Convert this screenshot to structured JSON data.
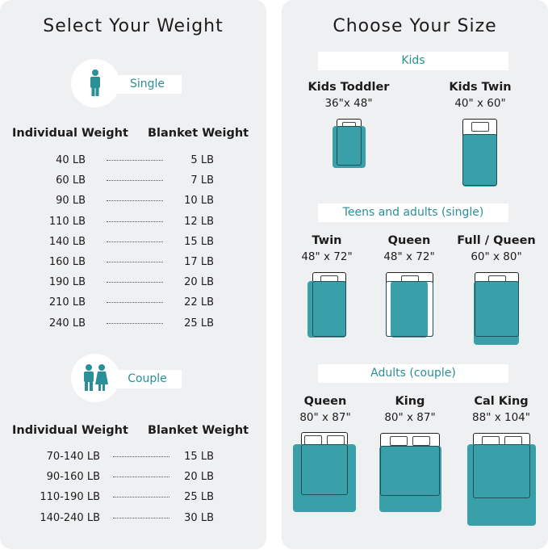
{
  "weight": {
    "title": "Select Your Weight",
    "single": {
      "label": "Single",
      "icon": "person-icon",
      "col1": "Individual Weight",
      "col2": "Blanket Weight",
      "rows": [
        [
          "40 LB",
          "5 LB"
        ],
        [
          "60 LB",
          "7 LB"
        ],
        [
          "90 LB",
          "10 LB"
        ],
        [
          "110 LB",
          "12 LB"
        ],
        [
          "140 LB",
          "15 LB"
        ],
        [
          "160 LB",
          "17 LB"
        ],
        [
          "190 LB",
          "20 LB"
        ],
        [
          "210 LB",
          "22 LB"
        ],
        [
          "240 LB",
          "25 LB"
        ]
      ]
    },
    "couple": {
      "label": "Couple",
      "icon": "couple-icon",
      "col1": "Individual Weight",
      "col2": "Blanket Weight",
      "rows": [
        [
          "70-140 LB",
          "15 LB"
        ],
        [
          "90-160 LB",
          "20 LB"
        ],
        [
          "110-190 LB",
          "25 LB"
        ],
        [
          "140-240 LB",
          "30 LB"
        ]
      ]
    }
  },
  "size": {
    "title": "Choose Your Size",
    "sections": [
      {
        "label": "Kids",
        "beds": [
          {
            "name": "Kids Toddler",
            "size": "36\"x 48\""
          },
          {
            "name": "Kids Twin",
            "size": "40\" x 60\""
          }
        ]
      },
      {
        "label": "Teens and adults (single)",
        "beds": [
          {
            "name": "Twin",
            "size": "48\" x 72\""
          },
          {
            "name": "Queen",
            "size": "48\" x 72\""
          },
          {
            "name": "Full / Queen",
            "size": "60\" x 80\""
          }
        ]
      },
      {
        "label": "Adults (couple)",
        "beds": [
          {
            "name": "Queen",
            "size": "80\" x 87\""
          },
          {
            "name": "King",
            "size": "80\" x 87\""
          },
          {
            "name": "Cal King",
            "size": "88\" x 104\""
          }
        ]
      }
    ]
  },
  "colors": {
    "teal": "#399fa8",
    "panel": "#eff0f2"
  }
}
